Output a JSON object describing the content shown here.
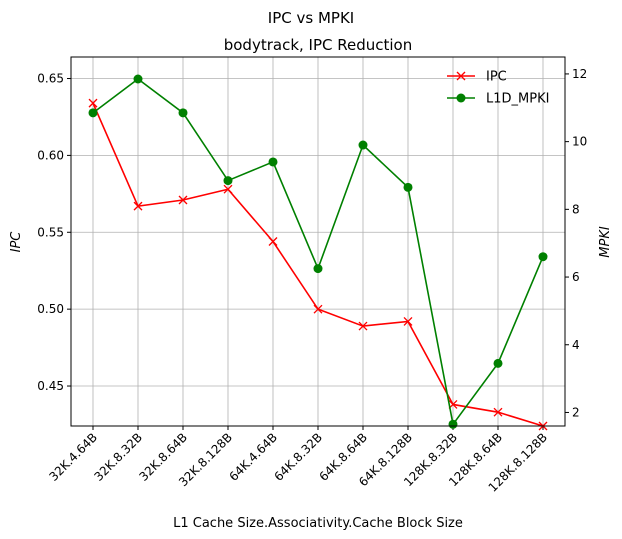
{
  "chart_data": {
    "type": "line",
    "suptitle": "IPC vs MPKI",
    "title": "bodytrack, IPC Reduction",
    "xlabel": "L1 Cache Size.Associativity.Cache Block Size",
    "ylabel_left": "IPC",
    "ylabel_right": "MPKI",
    "categories": [
      "32K.4.64B",
      "32K.8.32B",
      "32K.8.64B",
      "32K.8.128B",
      "64K.4.64B",
      "64K.8.32B",
      "64K.8.64B",
      "64K.8.128B",
      "128K.8.32B",
      "128K.8.64B",
      "128K.8.128B"
    ],
    "y_left": {
      "min": 0.424,
      "max": 0.664,
      "ticks": [
        0.45,
        0.5,
        0.55,
        0.6,
        0.65
      ],
      "tick_labels": [
        "0.45",
        "0.50",
        "0.55",
        "0.60",
        "0.65"
      ]
    },
    "y_right": {
      "min": 1.6,
      "max": 12.5,
      "ticks": [
        2,
        4,
        6,
        8,
        10,
        12
      ],
      "tick_labels": [
        "2",
        "4",
        "6",
        "8",
        "10",
        "12"
      ]
    },
    "grid": true,
    "legend_position": "top-right",
    "series": [
      {
        "name": "IPC",
        "axis": "left",
        "color": "#ff0000",
        "marker": "x",
        "values": [
          0.634,
          0.567,
          0.571,
          0.578,
          0.544,
          0.5,
          0.489,
          0.492,
          0.438,
          0.433,
          0.424
        ]
      },
      {
        "name": "L1D_MPKI",
        "axis": "right",
        "color": "#008000",
        "marker": "circle",
        "values": [
          10.85,
          11.85,
          10.85,
          8.85,
          9.4,
          6.25,
          9.9,
          8.65,
          1.65,
          3.45,
          6.6
        ]
      }
    ]
  }
}
